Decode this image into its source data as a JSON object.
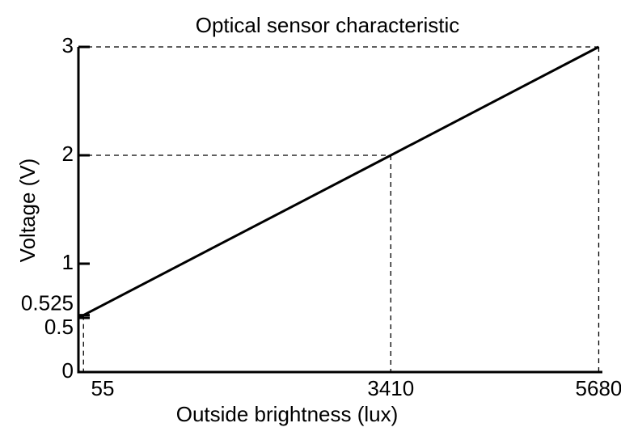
{
  "chart_data": {
    "type": "line",
    "title": "Optical sensor characteristic",
    "x_label": "Outside brightness (lux)",
    "y_label": "Voltage (V)",
    "x": [
      0,
      55,
      3410,
      5680
    ],
    "series": [
      {
        "color": "#000000",
        "values": [
          0.5,
          0.525,
          2,
          3
        ]
      }
    ],
    "xlim": [
      0,
      5720
    ],
    "ylim": [
      0,
      3
    ],
    "xticks": [
      55,
      3410,
      5680
    ],
    "yticks": [
      0,
      0.5,
      0.525,
      1,
      2,
      3
    ]
  }
}
